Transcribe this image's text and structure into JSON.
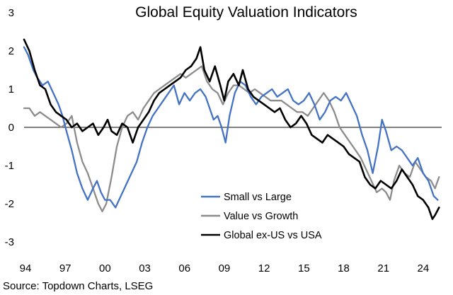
{
  "chart_data": {
    "type": "line",
    "title": "Global Equity Valuation Indicators",
    "xlabel": "",
    "ylabel": "",
    "xlim": [
      1994,
      2025.5
    ],
    "ylim": [
      -3,
      3
    ],
    "y_ticks": [
      3,
      2,
      1,
      0,
      -1,
      -2,
      -3
    ],
    "x_ticks": [
      {
        "value": 1994,
        "label": "94"
      },
      {
        "value": 1997,
        "label": "97"
      },
      {
        "value": 2000,
        "label": "00"
      },
      {
        "value": 2003,
        "label": "03"
      },
      {
        "value": 2006,
        "label": "06"
      },
      {
        "value": 2009,
        "label": "09"
      },
      {
        "value": 2012,
        "label": "12"
      },
      {
        "value": 2015,
        "label": "15"
      },
      {
        "value": 2018,
        "label": "18"
      },
      {
        "value": 2021,
        "label": "21"
      },
      {
        "value": 2024,
        "label": "24"
      }
    ],
    "grid": false,
    "legend_position": "bottom-center",
    "series": [
      {
        "name": "Small vs Large",
        "color": "#4472c4",
        "points": [
          [
            1994.0,
            2.1
          ],
          [
            1994.3,
            1.9
          ],
          [
            1994.7,
            1.5
          ],
          [
            1995.0,
            1.3
          ],
          [
            1995.4,
            1.1
          ],
          [
            1995.8,
            1.2
          ],
          [
            1996.2,
            0.9
          ],
          [
            1996.6,
            0.6
          ],
          [
            1996.9,
            0.3
          ],
          [
            1997.2,
            -0.1
          ],
          [
            1997.6,
            -0.6
          ],
          [
            1998.0,
            -1.2
          ],
          [
            1998.4,
            -1.6
          ],
          [
            1998.8,
            -1.9
          ],
          [
            1999.2,
            -1.6
          ],
          [
            1999.5,
            -1.4
          ],
          [
            1999.8,
            -1.7
          ],
          [
            2000.1,
            -1.9
          ],
          [
            2000.5,
            -1.9
          ],
          [
            2000.9,
            -2.1
          ],
          [
            2001.3,
            -1.8
          ],
          [
            2001.7,
            -1.5
          ],
          [
            2002.1,
            -1.2
          ],
          [
            2002.5,
            -0.9
          ],
          [
            2002.9,
            -0.4
          ],
          [
            2003.3,
            0.0
          ],
          [
            2003.7,
            0.3
          ],
          [
            2004.1,
            0.5
          ],
          [
            2004.5,
            0.7
          ],
          [
            2004.9,
            0.9
          ],
          [
            2005.3,
            1.1
          ],
          [
            2005.7,
            0.6
          ],
          [
            2006.1,
            0.9
          ],
          [
            2006.5,
            0.7
          ],
          [
            2006.9,
            0.9
          ],
          [
            2007.3,
            1.0
          ],
          [
            2007.7,
            0.8
          ],
          [
            2008.0,
            0.5
          ],
          [
            2008.3,
            0.2
          ],
          [
            2008.6,
            0.3
          ],
          [
            2008.9,
            0.0
          ],
          [
            2009.2,
            -0.4
          ],
          [
            2009.5,
            0.3
          ],
          [
            2009.9,
            0.9
          ],
          [
            2010.3,
            1.2
          ],
          [
            2010.7,
            1.1
          ],
          [
            2011.1,
            0.8
          ],
          [
            2011.5,
            0.6
          ],
          [
            2011.9,
            0.8
          ],
          [
            2012.3,
            0.9
          ],
          [
            2012.7,
            1.0
          ],
          [
            2013.1,
            0.8
          ],
          [
            2013.5,
            0.9
          ],
          [
            2013.9,
            1.0
          ],
          [
            2014.3,
            0.7
          ],
          [
            2014.7,
            0.6
          ],
          [
            2015.1,
            0.7
          ],
          [
            2015.5,
            0.9
          ],
          [
            2015.9,
            0.6
          ],
          [
            2016.3,
            0.2
          ],
          [
            2016.7,
            0.4
          ],
          [
            2017.1,
            0.7
          ],
          [
            2017.5,
            0.8
          ],
          [
            2017.9,
            0.7
          ],
          [
            2018.3,
            0.9
          ],
          [
            2018.7,
            0.6
          ],
          [
            2019.1,
            0.3
          ],
          [
            2019.5,
            -0.2
          ],
          [
            2019.9,
            -0.6
          ],
          [
            2020.3,
            -1.2
          ],
          [
            2020.7,
            -0.5
          ],
          [
            2021.0,
            0.2
          ],
          [
            2021.3,
            -0.1
          ],
          [
            2021.7,
            -0.6
          ],
          [
            2022.1,
            -0.5
          ],
          [
            2022.5,
            -0.6
          ],
          [
            2022.9,
            -0.8
          ],
          [
            2023.3,
            -1.0
          ],
          [
            2023.7,
            -0.8
          ],
          [
            2024.1,
            -1.2
          ],
          [
            2024.5,
            -1.4
          ],
          [
            2024.9,
            -1.8
          ],
          [
            2025.2,
            -1.9
          ]
        ]
      },
      {
        "name": "Value vs Growth",
        "color": "#8c8c8c",
        "points": [
          [
            1994.0,
            0.5
          ],
          [
            1994.4,
            0.5
          ],
          [
            1994.8,
            0.3
          ],
          [
            1995.2,
            0.4
          ],
          [
            1995.6,
            0.3
          ],
          [
            1996.0,
            0.2
          ],
          [
            1996.4,
            0.1
          ],
          [
            1996.8,
            0.0
          ],
          [
            1997.2,
            0.1
          ],
          [
            1997.6,
            0.3
          ],
          [
            1998.0,
            -0.4
          ],
          [
            1998.4,
            -0.9
          ],
          [
            1998.8,
            -1.2
          ],
          [
            1999.2,
            -1.6
          ],
          [
            1999.6,
            -2.0
          ],
          [
            1999.9,
            -2.2
          ],
          [
            2000.2,
            -2.0
          ],
          [
            2000.6,
            -1.3
          ],
          [
            2001.0,
            -0.5
          ],
          [
            2001.4,
            0.0
          ],
          [
            2001.8,
            0.3
          ],
          [
            2002.2,
            0.4
          ],
          [
            2002.6,
            0.2
          ],
          [
            2003.0,
            0.5
          ],
          [
            2003.4,
            0.7
          ],
          [
            2003.8,
            0.9
          ],
          [
            2004.2,
            1.0
          ],
          [
            2004.6,
            1.1
          ],
          [
            2005.0,
            1.2
          ],
          [
            2005.4,
            1.3
          ],
          [
            2005.8,
            1.4
          ],
          [
            2006.2,
            1.3
          ],
          [
            2006.6,
            1.4
          ],
          [
            2007.0,
            1.5
          ],
          [
            2007.4,
            1.6
          ],
          [
            2007.8,
            1.2
          ],
          [
            2008.2,
            1.0
          ],
          [
            2008.6,
            0.9
          ],
          [
            2009.0,
            0.6
          ],
          [
            2009.4,
            0.9
          ],
          [
            2009.8,
            1.1
          ],
          [
            2010.2,
            1.1
          ],
          [
            2010.6,
            1.0
          ],
          [
            2011.0,
            0.9
          ],
          [
            2011.4,
            1.0
          ],
          [
            2011.8,
            0.9
          ],
          [
            2012.2,
            0.8
          ],
          [
            2012.6,
            0.7
          ],
          [
            2013.0,
            0.7
          ],
          [
            2013.4,
            0.7
          ],
          [
            2013.8,
            0.6
          ],
          [
            2014.2,
            0.5
          ],
          [
            2014.6,
            0.4
          ],
          [
            2015.0,
            0.4
          ],
          [
            2015.4,
            0.3
          ],
          [
            2015.8,
            0.5
          ],
          [
            2016.2,
            0.7
          ],
          [
            2016.6,
            0.9
          ],
          [
            2017.0,
            0.7
          ],
          [
            2017.4,
            0.4
          ],
          [
            2017.8,
            0.0
          ],
          [
            2018.2,
            -0.2
          ],
          [
            2018.6,
            -0.4
          ],
          [
            2019.0,
            -0.6
          ],
          [
            2019.4,
            -0.8
          ],
          [
            2019.8,
            -1.1
          ],
          [
            2020.2,
            -1.4
          ],
          [
            2020.6,
            -1.7
          ],
          [
            2021.0,
            -1.6
          ],
          [
            2021.3,
            -1.7
          ],
          [
            2021.6,
            -1.9
          ],
          [
            2021.9,
            -1.4
          ],
          [
            2022.3,
            -1.0
          ],
          [
            2022.7,
            -1.2
          ],
          [
            2023.1,
            -1.3
          ],
          [
            2023.5,
            -0.9
          ],
          [
            2023.9,
            -1.1
          ],
          [
            2024.3,
            -1.3
          ],
          [
            2024.7,
            -1.4
          ],
          [
            2025.0,
            -1.6
          ],
          [
            2025.3,
            -1.3
          ]
        ]
      },
      {
        "name": "Global ex-US vs USA",
        "color": "#000000",
        "points": [
          [
            1994.0,
            2.3
          ],
          [
            1994.4,
            2.0
          ],
          [
            1994.8,
            1.5
          ],
          [
            1995.2,
            1.1
          ],
          [
            1995.6,
            1.0
          ],
          [
            1996.0,
            0.6
          ],
          [
            1996.4,
            0.4
          ],
          [
            1996.8,
            0.3
          ],
          [
            1997.2,
            0.2
          ],
          [
            1997.6,
            0.0
          ],
          [
            1998.0,
            0.1
          ],
          [
            1998.4,
            -0.1
          ],
          [
            1998.8,
            0.0
          ],
          [
            1999.2,
            0.1
          ],
          [
            1999.6,
            -0.2
          ],
          [
            2000.0,
            0.0
          ],
          [
            2000.3,
            0.2
          ],
          [
            2000.6,
            -0.1
          ],
          [
            2001.0,
            -0.2
          ],
          [
            2001.4,
            0.1
          ],
          [
            2001.8,
            0.0
          ],
          [
            2002.2,
            -0.4
          ],
          [
            2002.6,
            0.0
          ],
          [
            2003.0,
            0.2
          ],
          [
            2003.4,
            0.4
          ],
          [
            2003.8,
            0.7
          ],
          [
            2004.2,
            0.9
          ],
          [
            2004.6,
            1.0
          ],
          [
            2005.0,
            1.1
          ],
          [
            2005.4,
            1.2
          ],
          [
            2005.8,
            1.3
          ],
          [
            2006.2,
            1.5
          ],
          [
            2006.6,
            1.6
          ],
          [
            2007.0,
            1.8
          ],
          [
            2007.3,
            2.1
          ],
          [
            2007.6,
            1.5
          ],
          [
            2008.0,
            1.2
          ],
          [
            2008.4,
            1.6
          ],
          [
            2008.8,
            1.1
          ],
          [
            2009.1,
            0.7
          ],
          [
            2009.4,
            1.2
          ],
          [
            2009.8,
            1.4
          ],
          [
            2010.2,
            1.1
          ],
          [
            2010.5,
            1.5
          ],
          [
            2010.9,
            1.0
          ],
          [
            2011.3,
            0.8
          ],
          [
            2011.7,
            0.7
          ],
          [
            2012.1,
            0.6
          ],
          [
            2012.5,
            0.5
          ],
          [
            2012.9,
            0.4
          ],
          [
            2013.3,
            0.5
          ],
          [
            2013.7,
            0.2
          ],
          [
            2014.1,
            0.0
          ],
          [
            2014.5,
            0.1
          ],
          [
            2014.9,
            0.3
          ],
          [
            2015.3,
            0.1
          ],
          [
            2015.7,
            -0.2
          ],
          [
            2016.1,
            -0.3
          ],
          [
            2016.5,
            -0.4
          ],
          [
            2016.9,
            -0.2
          ],
          [
            2017.3,
            -0.3
          ],
          [
            2017.7,
            -0.4
          ],
          [
            2018.1,
            -0.5
          ],
          [
            2018.5,
            -0.7
          ],
          [
            2018.9,
            -0.8
          ],
          [
            2019.3,
            -0.9
          ],
          [
            2019.7,
            -1.3
          ],
          [
            2020.1,
            -1.5
          ],
          [
            2020.5,
            -1.6
          ],
          [
            2020.9,
            -1.4
          ],
          [
            2021.3,
            -1.5
          ],
          [
            2021.7,
            -1.6
          ],
          [
            2022.1,
            -1.4
          ],
          [
            2022.5,
            -1.1
          ],
          [
            2022.9,
            -1.3
          ],
          [
            2023.3,
            -1.5
          ],
          [
            2023.7,
            -1.8
          ],
          [
            2024.1,
            -1.9
          ],
          [
            2024.5,
            -2.1
          ],
          [
            2024.8,
            -2.4
          ],
          [
            2025.0,
            -2.3
          ],
          [
            2025.3,
            -2.1
          ]
        ]
      }
    ]
  },
  "source_text": "Source: Topdown Charts, LSEG"
}
